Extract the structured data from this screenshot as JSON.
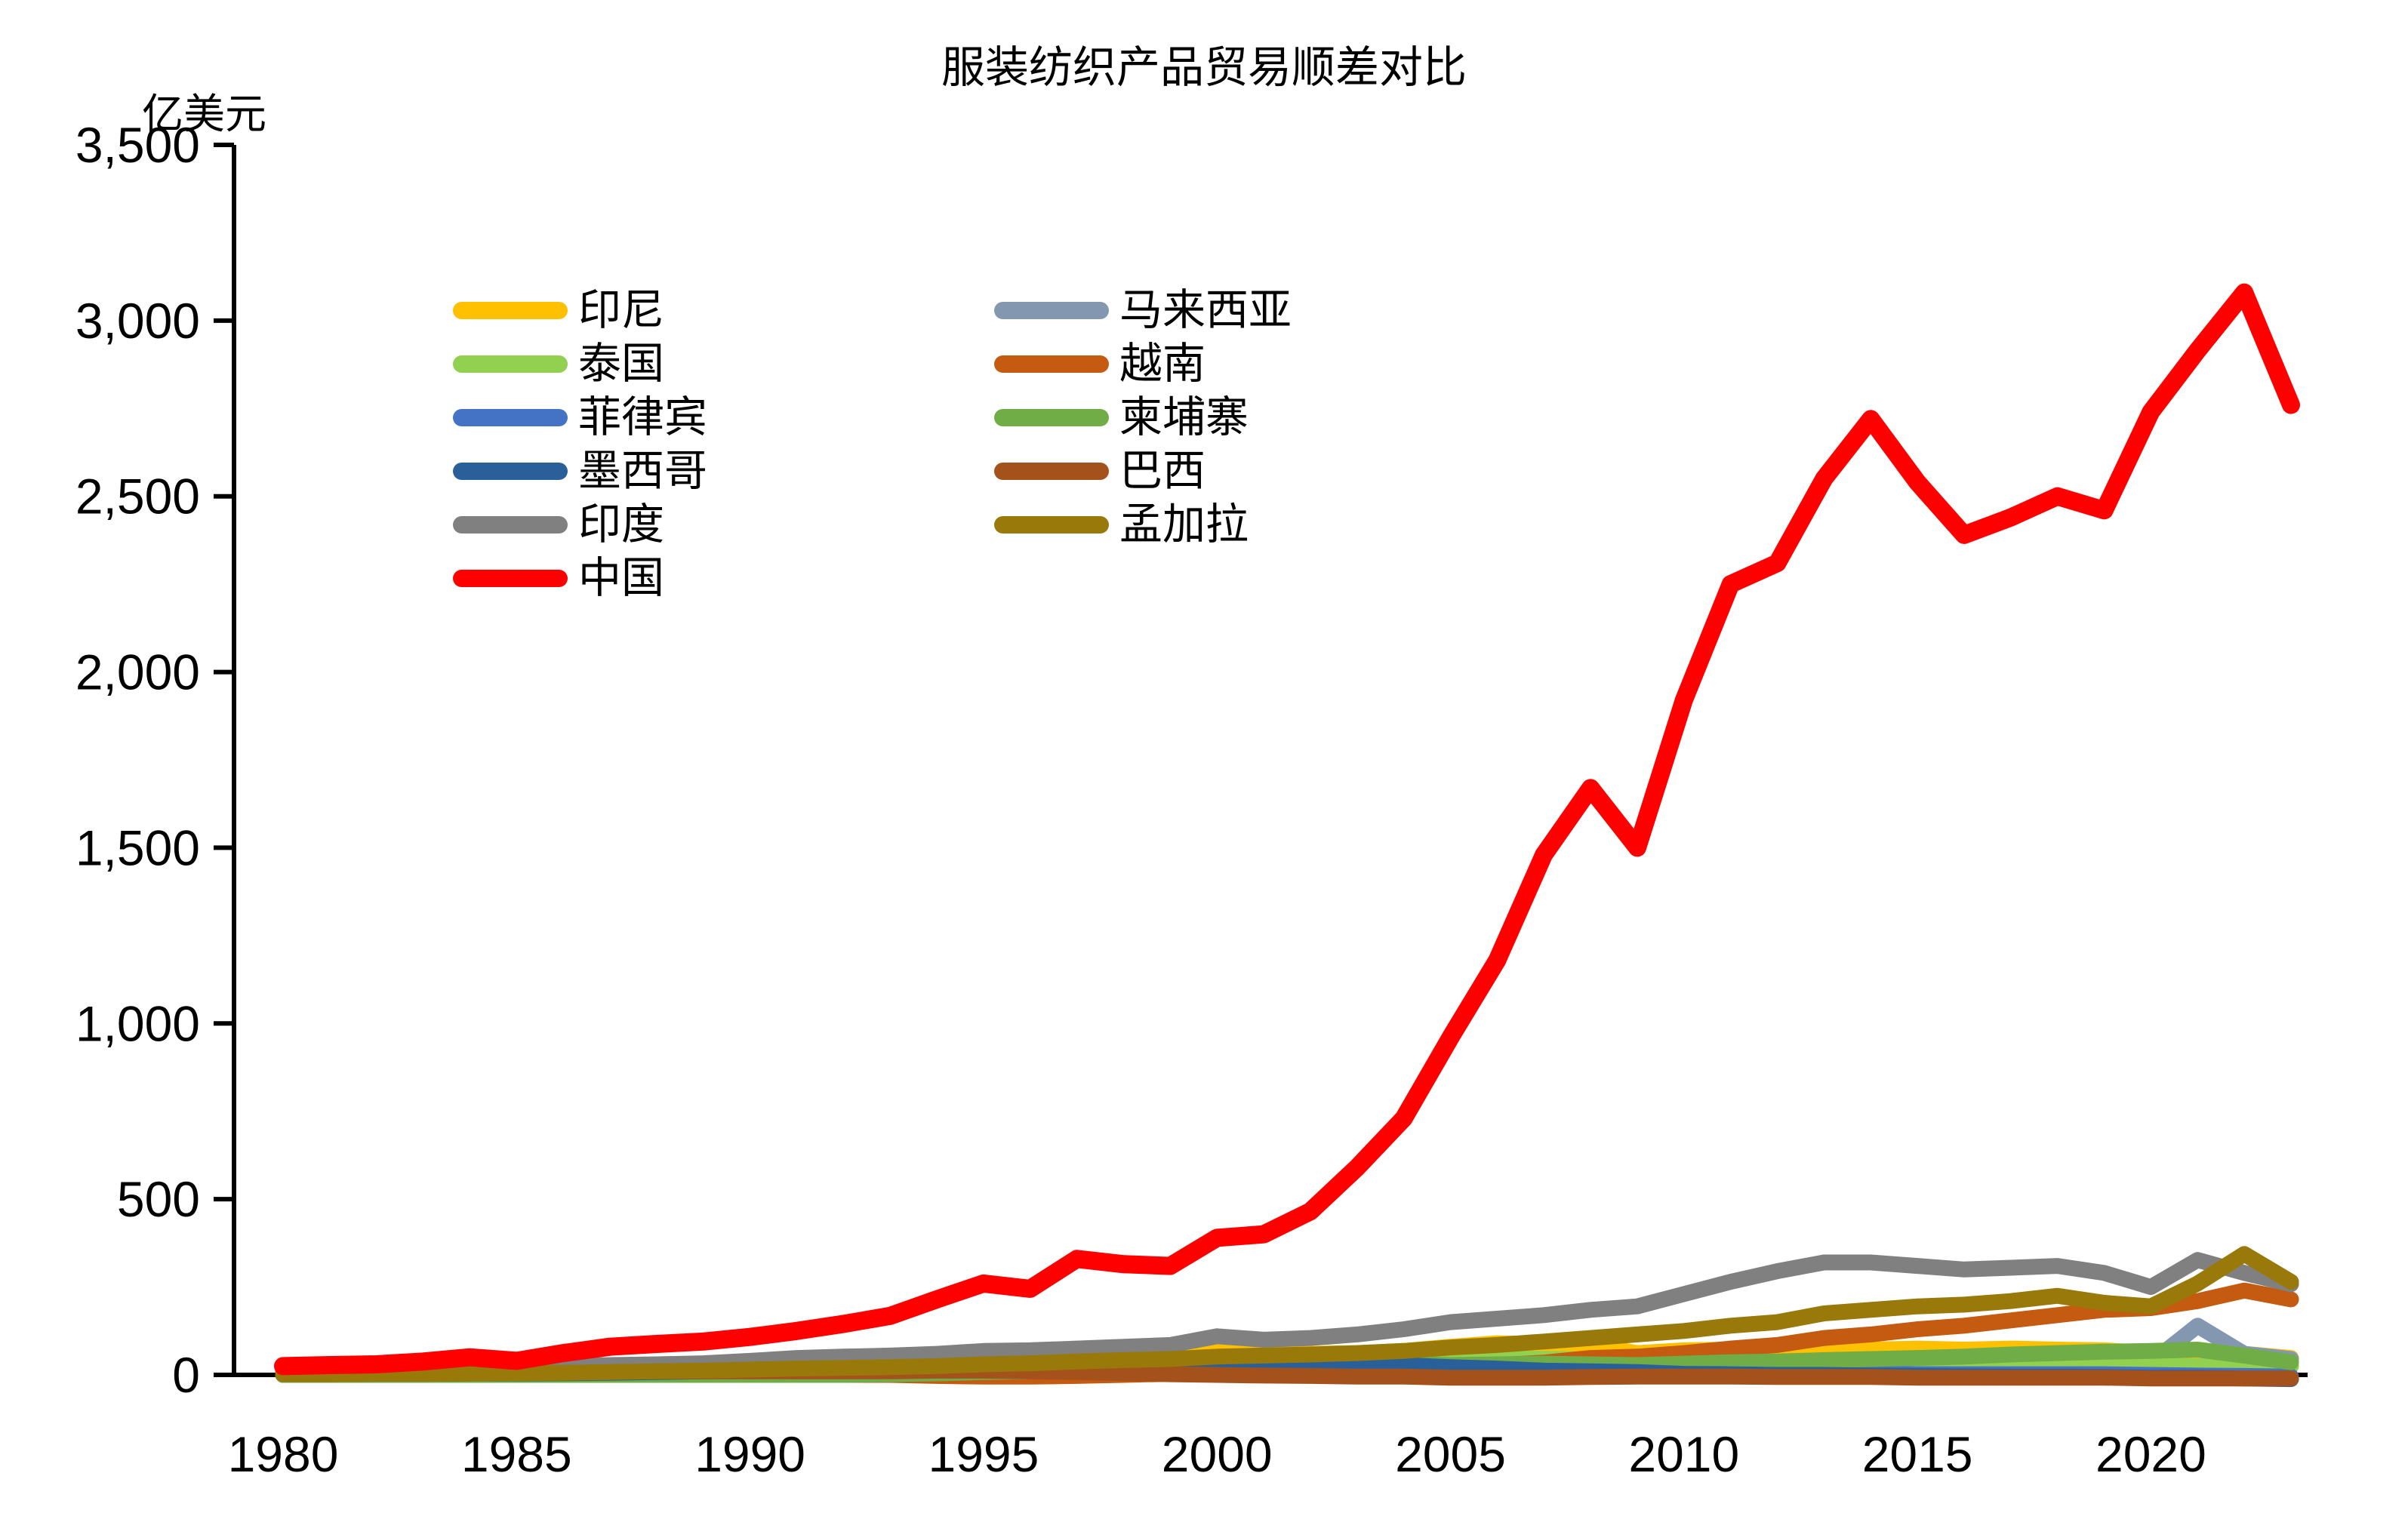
{
  "header": {
    "title": "服装纺织产品贸易顺差对比"
  },
  "chart_data": {
    "type": "line",
    "title": "服装纺织产品贸易顺差对比",
    "unit_label": "亿美元",
    "xlabel": "",
    "ylabel": "亿美元",
    "ylim": [
      0,
      3500
    ],
    "grid": false,
    "legend_position": "inside upper-left, two columns",
    "x": [
      1980,
      1981,
      1982,
      1983,
      1984,
      1985,
      1986,
      1987,
      1988,
      1989,
      1990,
      1991,
      1992,
      1993,
      1994,
      1995,
      1996,
      1997,
      1998,
      1999,
      2000,
      2001,
      2002,
      2003,
      2004,
      2005,
      2006,
      2007,
      2008,
      2009,
      2010,
      2011,
      2012,
      2013,
      2014,
      2015,
      2016,
      2017,
      2018,
      2019,
      2020,
      2021,
      2022,
      2023
    ],
    "x_ticks": [
      {
        "value": 1980,
        "label": "1980"
      },
      {
        "value": 1985,
        "label": "1985"
      },
      {
        "value": 1990,
        "label": "1990"
      },
      {
        "value": 1995,
        "label": "1995"
      },
      {
        "value": 2000,
        "label": "2000"
      },
      {
        "value": 2005,
        "label": "2005"
      },
      {
        "value": 2010,
        "label": "2010"
      },
      {
        "value": 2015,
        "label": "2015"
      },
      {
        "value": 2020,
        "label": "2020"
      }
    ],
    "y_ticks": [
      {
        "value": 0,
        "label": "0"
      },
      {
        "value": 500,
        "label": "500"
      },
      {
        "value": 1000,
        "label": "1,000"
      },
      {
        "value": 1500,
        "label": "1,500"
      },
      {
        "value": 2000,
        "label": "2,000"
      },
      {
        "value": 2500,
        "label": "2,500"
      },
      {
        "value": 3000,
        "label": "3,000"
      },
      {
        "value": 3500,
        "label": "3,500"
      }
    ],
    "series": [
      {
        "key": "indonesia",
        "label": "印尼",
        "color": "#FFC000",
        "values": [
          1,
          1,
          2,
          2,
          3,
          4,
          5,
          8,
          10,
          14,
          18,
          25,
          30,
          35,
          38,
          42,
          45,
          50,
          55,
          60,
          72,
          62,
          60,
          62,
          68,
          80,
          90,
          88,
          85,
          62,
          70,
          72,
          68,
          70,
          72,
          75,
          72,
          75,
          72,
          70,
          62,
          58,
          60,
          48
        ]
      },
      {
        "key": "malaysia",
        "label": "马来西亚",
        "color": "#8497B0",
        "values": [
          3,
          3,
          3,
          4,
          4,
          5,
          6,
          8,
          10,
          12,
          14,
          16,
          18,
          20,
          22,
          24,
          25,
          26,
          26,
          25,
          24,
          22,
          20,
          20,
          20,
          18,
          17,
          16,
          15,
          14,
          14,
          15,
          15,
          16,
          16,
          15,
          15,
          16,
          18,
          20,
          35,
          140,
          60,
          45
        ]
      },
      {
        "key": "thailand",
        "label": "泰国",
        "color": "#92D050",
        "values": [
          1,
          1,
          2,
          2,
          3,
          5,
          8,
          12,
          18,
          25,
          30,
          35,
          38,
          40,
          42,
          45,
          42,
          40,
          38,
          38,
          40,
          38,
          38,
          40,
          42,
          44,
          45,
          46,
          44,
          38,
          40,
          38,
          36,
          35,
          33,
          30,
          28,
          30,
          30,
          28,
          26,
          25,
          28,
          25
        ]
      },
      {
        "key": "vietnam",
        "label": "越南",
        "color": "#C55A11",
        "values": [
          0,
          0,
          0,
          0,
          0,
          0,
          0,
          0,
          0,
          0,
          0,
          0,
          0,
          0,
          -3,
          -5,
          -5,
          -3,
          0,
          3,
          5,
          8,
          10,
          15,
          18,
          22,
          28,
          35,
          48,
          52,
          62,
          75,
          85,
          105,
          115,
          130,
          140,
          155,
          170,
          185,
          190,
          210,
          240,
          215
        ]
      },
      {
        "key": "philippines",
        "label": "菲律宾",
        "color": "#4472C4",
        "values": [
          0,
          0,
          0,
          0,
          0,
          0,
          1,
          2,
          3,
          5,
          8,
          10,
          12,
          15,
          18,
          20,
          20,
          22,
          25,
          25,
          28,
          25,
          22,
          20,
          18,
          15,
          12,
          10,
          8,
          6,
          5,
          4,
          3,
          3,
          3,
          2,
          2,
          2,
          2,
          2,
          0,
          -2,
          -3,
          -5
        ]
      },
      {
        "key": "cambodia",
        "label": "柬埔寨",
        "color": "#70AD47",
        "values": [
          0,
          0,
          0,
          0,
          0,
          0,
          0,
          0,
          0,
          0,
          0,
          0,
          0,
          2,
          4,
          8,
          10,
          14,
          18,
          22,
          25,
          27,
          28,
          30,
          32,
          28,
          30,
          32,
          30,
          28,
          32,
          36,
          38,
          42,
          45,
          48,
          52,
          58,
          62,
          66,
          68,
          72,
          55,
          36
        ]
      },
      {
        "key": "mexico",
        "label": "墨西哥",
        "color": "#2A6099",
        "values": [
          2,
          2,
          3,
          3,
          4,
          4,
          5,
          6,
          8,
          10,
          12,
          14,
          16,
          18,
          20,
          24,
          26,
          30,
          34,
          36,
          38,
          36,
          34,
          30,
          28,
          22,
          18,
          12,
          10,
          8,
          3,
          2,
          0,
          0,
          -2,
          -3,
          -4,
          -5,
          -5,
          -6,
          -8,
          -8,
          -10,
          -12
        ]
      },
      {
        "key": "brazil",
        "label": "巴西",
        "color": "#A5511B",
        "values": [
          8,
          8,
          9,
          9,
          10,
          10,
          10,
          10,
          10,
          10,
          10,
          10,
          10,
          10,
          12,
          12,
          10,
          8,
          5,
          2,
          0,
          -2,
          -3,
          -5,
          -5,
          -8,
          -8,
          -8,
          -6,
          -5,
          -5,
          -5,
          -6,
          -6,
          -6,
          -8,
          -8,
          -8,
          -8,
          -8,
          -10,
          -10,
          -10,
          -10
        ]
      },
      {
        "key": "india",
        "label": "印度",
        "color": "#808080",
        "values": [
          15,
          16,
          17,
          18,
          20,
          22,
          25,
          28,
          30,
          33,
          40,
          48,
          52,
          55,
          60,
          68,
          70,
          75,
          80,
          85,
          110,
          100,
          105,
          115,
          130,
          150,
          160,
          170,
          185,
          195,
          230,
          265,
          295,
          320,
          320,
          310,
          300,
          305,
          310,
          290,
          250,
          327,
          290,
          258
        ]
      },
      {
        "key": "bangladesh",
        "label": "孟加拉",
        "color": "#997909",
        "values": [
          2,
          2,
          3,
          3,
          4,
          5,
          6,
          8,
          10,
          12,
          15,
          18,
          20,
          22,
          25,
          30,
          33,
          38,
          42,
          45,
          52,
          55,
          58,
          62,
          68,
          78,
          85,
          95,
          105,
          115,
          125,
          140,
          150,
          175,
          185,
          195,
          200,
          210,
          225,
          205,
          195,
          260,
          344,
          265
        ]
      },
      {
        "key": "china",
        "label": "中国",
        "color": "#FF0000",
        "values": [
          25,
          28,
          30,
          38,
          50,
          40,
          62,
          80,
          88,
          95,
          108,
          125,
          145,
          168,
          215,
          260,
          245,
          330,
          315,
          310,
          390,
          400,
          465,
          590,
          730,
          960,
          1180,
          1480,
          1670,
          1500,
          1920,
          2250,
          2310,
          2550,
          2720,
          2540,
          2390,
          2440,
          2500,
          2460,
          2740,
          2915,
          3080,
          2760
        ]
      }
    ],
    "legend_columns": [
      [
        "indonesia",
        "thailand",
        "philippines",
        "mexico",
        "india",
        "china"
      ],
      [
        "malaysia",
        "vietnam",
        "cambodia",
        "brazil",
        "bangladesh"
      ]
    ]
  }
}
